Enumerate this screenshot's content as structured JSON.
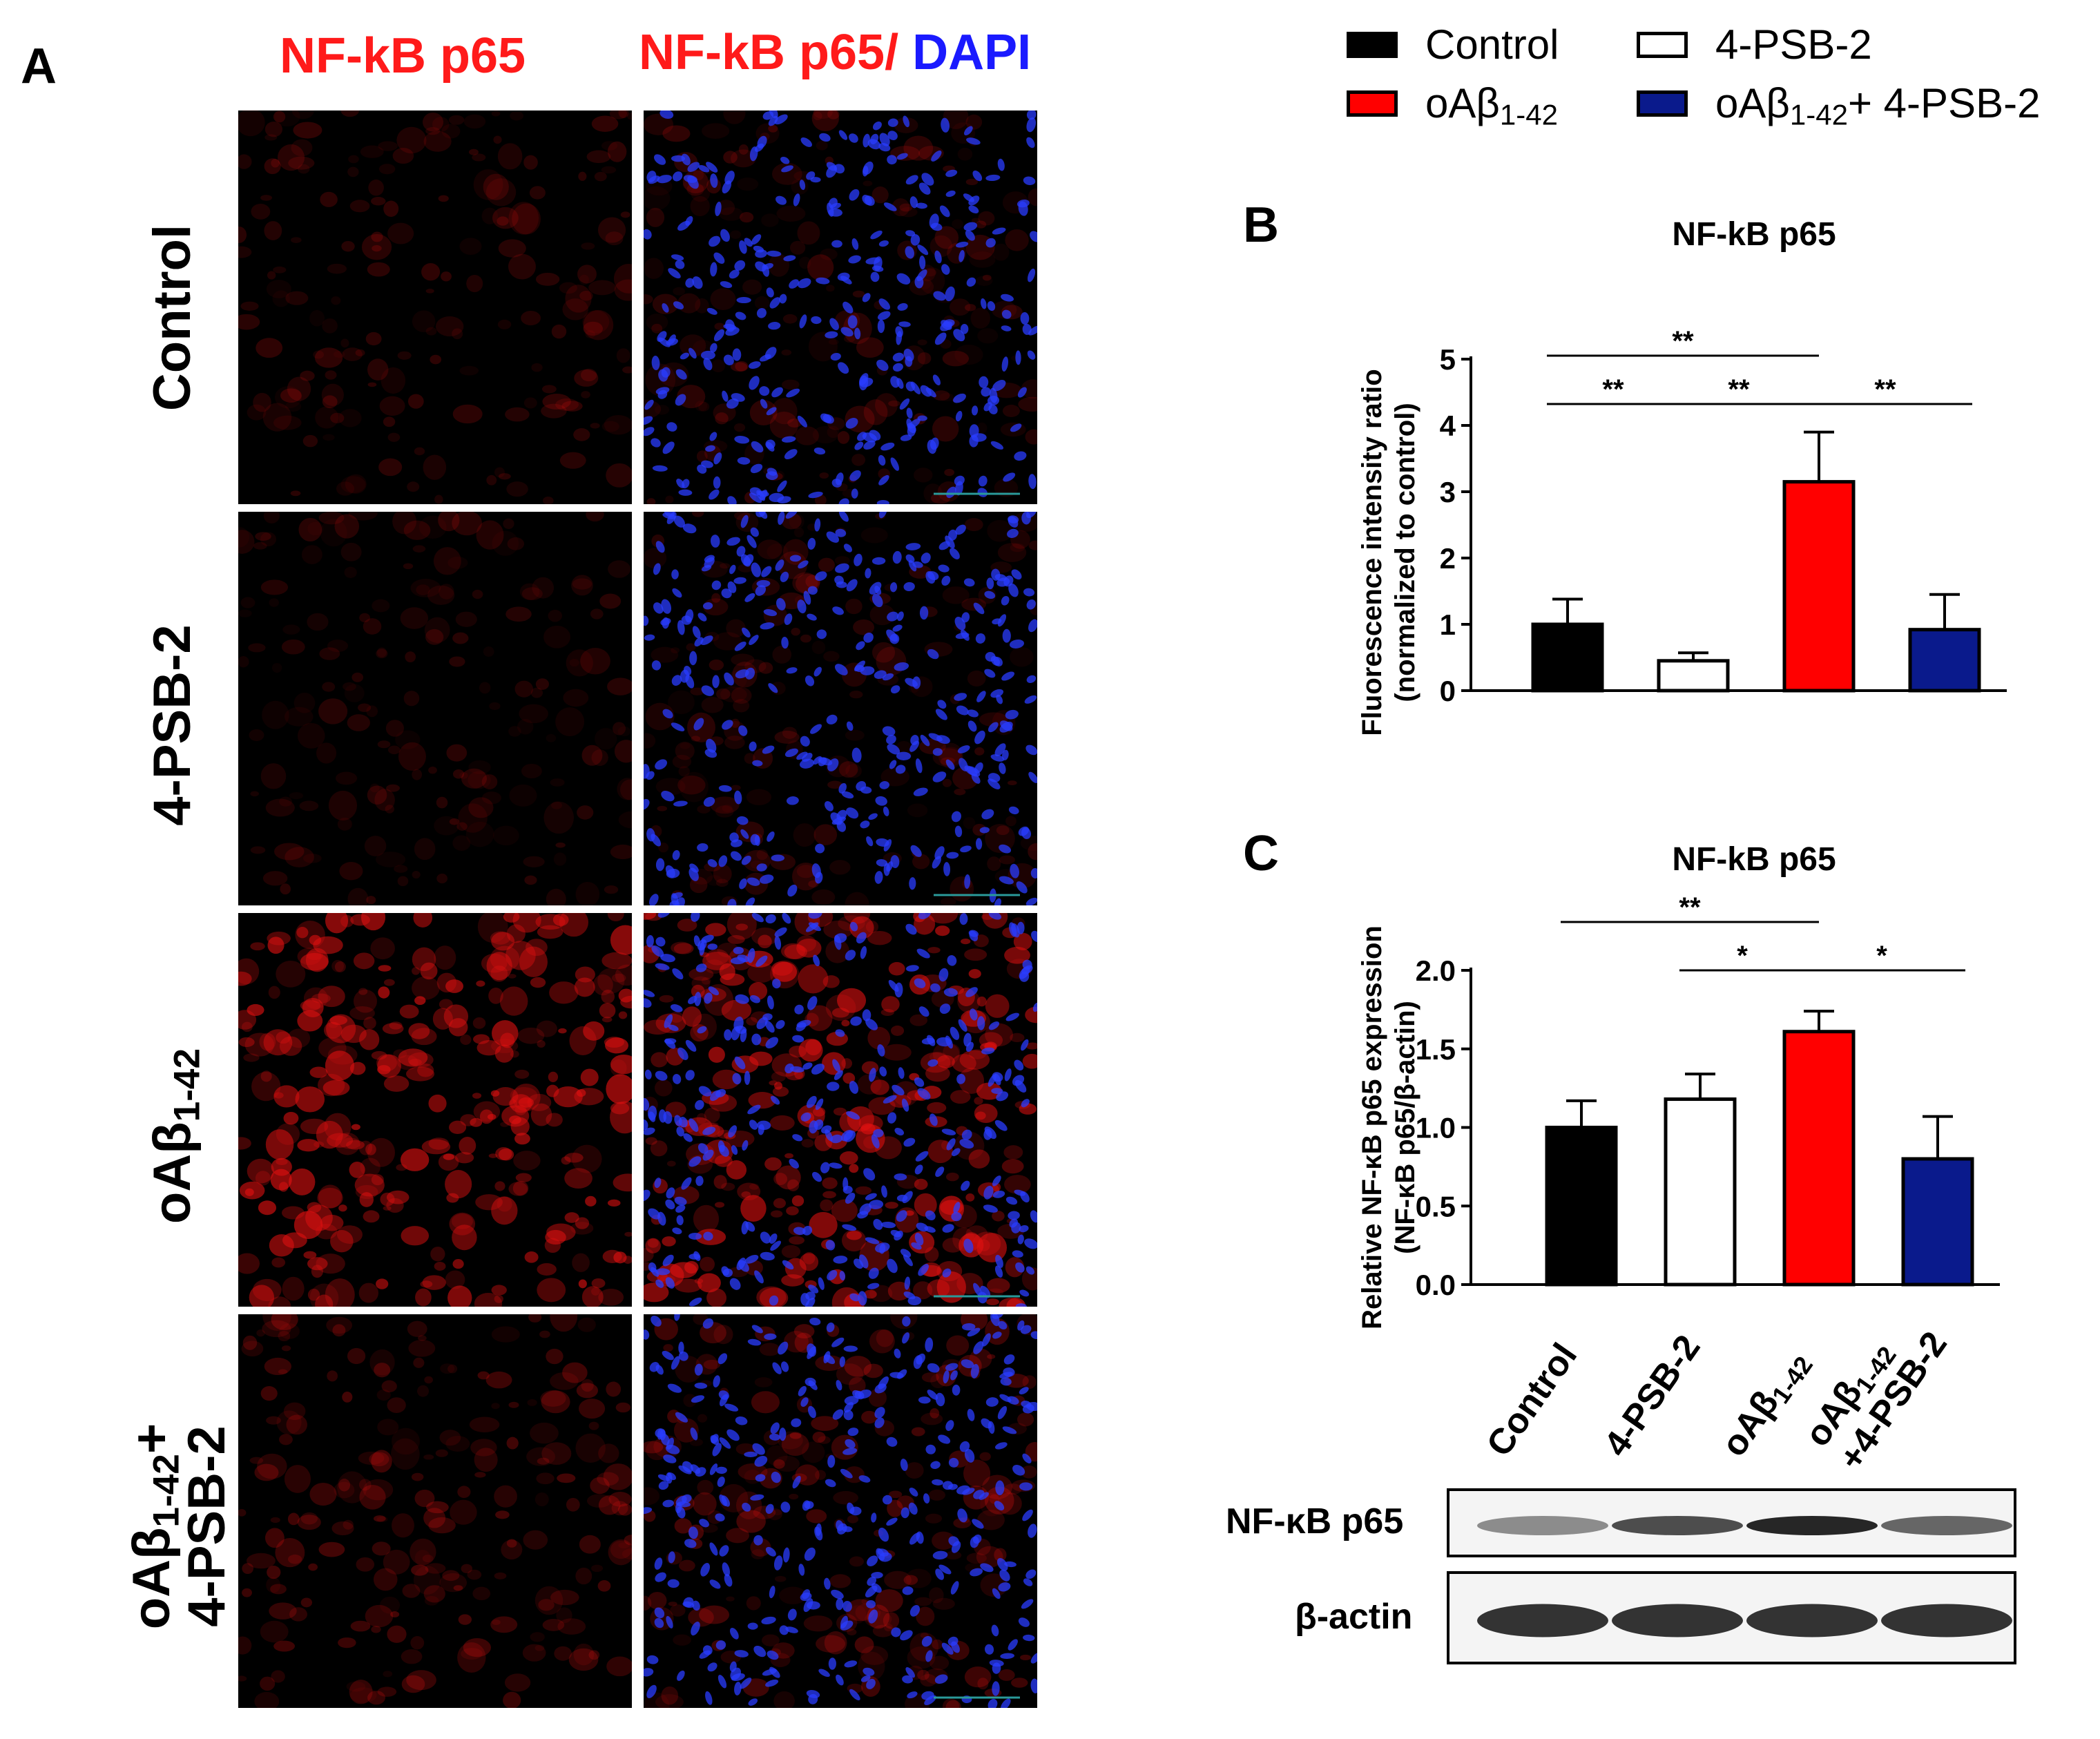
{
  "figure": {
    "panel_a": {
      "letter": "A",
      "col_headers": {
        "left": "NF-kB p65",
        "right_red": "NF-kB p65/",
        "right_blue": " DAPI"
      },
      "rows": [
        {
          "label": "Control"
        },
        {
          "label": "4-PSB-2"
        },
        {
          "label_prefix": "oAβ",
          "label_sub": "1-42",
          "label_suffix": ""
        },
        {
          "label_line1_prefix": "oAβ",
          "label_line1_sub": "1-42",
          "label_line1_suffix": "+",
          "label_line2": "4-PSB-2"
        }
      ]
    },
    "legend": [
      {
        "label": "Control",
        "color": "#000000"
      },
      {
        "label": "4-PSB-2",
        "color": "#ffffff"
      },
      {
        "label_prefix": "oAβ",
        "label_sub": "1-42",
        "label_suffix": "",
        "color": "#ff0000"
      },
      {
        "label_prefix": "oAβ",
        "label_sub": "1-42",
        "label_suffix": "+ 4-PSB-2",
        "color": "#0a1a8c"
      }
    ],
    "panel_b": {
      "letter": "B"
    },
    "panel_c": {
      "letter": "C"
    },
    "blot": {
      "lanes": [
        {
          "label": "Control"
        },
        {
          "label": "4-PSB-2"
        },
        {
          "label_prefix": "oAβ",
          "label_sub": "1-42"
        },
        {
          "label_prefix": "oAβ",
          "label_sub": "1-42",
          "label_line2": "+4-PSB-2"
        }
      ],
      "rows": [
        {
          "label": "NF-κB p65",
          "intensity": [
            0.45,
            0.7,
            0.85,
            0.6
          ]
        },
        {
          "label": "β-actin",
          "intensity": [
            0.8,
            0.8,
            0.8,
            0.8
          ]
        }
      ]
    }
  },
  "chart_data": [
    {
      "type": "bar",
      "title": "NF-kB p65",
      "ylabel_line1": "Fluorescence intensity ratio",
      "ylabel_line2": "(normalized to control)",
      "categories": [
        "Control",
        "4-PSB-2",
        "oAβ1-42",
        "oAβ1-42+ 4-PSB-2"
      ],
      "values": [
        1.0,
        0.45,
        3.15,
        0.92
      ],
      "errors": [
        0.38,
        0.12,
        0.75,
        0.53
      ],
      "colors": [
        "#000000",
        "#ffffff",
        "#ff0000",
        "#0a1a8c"
      ],
      "ylim": [
        0,
        5
      ],
      "yticks": [
        "0",
        "1",
        "2",
        "3",
        "4",
        "5"
      ],
      "significance": [
        {
          "from": 0,
          "to": 2,
          "label": "**"
        },
        {
          "from": 0,
          "to": 1,
          "label": "**"
        },
        {
          "from": 1,
          "to": 2,
          "label": "**"
        },
        {
          "from": 2,
          "to": 3,
          "label": "**"
        }
      ]
    },
    {
      "type": "bar",
      "title": "NF-kB p65",
      "ylabel_line1": "Relative NF-κB p65 expression",
      "ylabel_line2": "(NF-κB p65/β-actin)",
      "categories": [
        "Control",
        "4-PSB-2",
        "oAβ1-42",
        "oAβ1-42+4-PSB-2"
      ],
      "values": [
        1.0,
        1.18,
        1.61,
        0.8
      ],
      "errors": [
        0.17,
        0.16,
        0.13,
        0.27
      ],
      "colors": [
        "#000000",
        "#ffffff",
        "#ff0000",
        "#0a1a8c"
      ],
      "ylim": [
        0,
        2.0
      ],
      "yticks": [
        "0.0",
        "0.5",
        "1.0",
        "1.5",
        "2.0"
      ],
      "significance": [
        {
          "from": 0,
          "to": 2,
          "label": "**"
        },
        {
          "from": 1,
          "to": 2,
          "label": "*"
        },
        {
          "from": 2,
          "to": 3,
          "label": "*"
        }
      ]
    }
  ]
}
